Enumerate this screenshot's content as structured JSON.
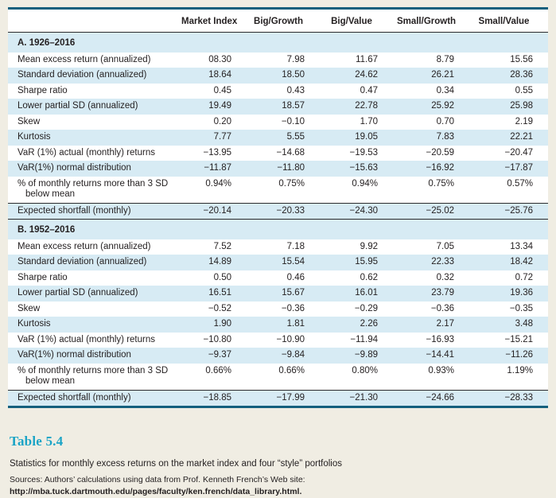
{
  "table": {
    "columns": [
      "Market Index",
      "Big/Growth",
      "Big/Value",
      "Small/Growth",
      "Small/Value"
    ],
    "panels": [
      {
        "title": "A. 1926–2016",
        "rows": [
          {
            "label": "Mean excess return (annualized)",
            "values": [
              "08.30",
              "7.98",
              "11.67",
              "8.79",
              "15.56"
            ]
          },
          {
            "label": "Standard deviation (annualized)",
            "values": [
              "18.64",
              "18.50",
              "24.62",
              "26.21",
              "28.36"
            ]
          },
          {
            "label": "Sharpe ratio",
            "values": [
              "0.45",
              "0.43",
              "0.47",
              "0.34",
              "0.55"
            ]
          },
          {
            "label": "Lower partial SD (annualized)",
            "values": [
              "19.49",
              "18.57",
              "22.78",
              "25.92",
              "25.98"
            ]
          },
          {
            "label": "Skew",
            "values": [
              "0.20",
              "−0.10",
              "1.70",
              "0.70",
              "2.19"
            ]
          },
          {
            "label": "Kurtosis",
            "values": [
              "7.77",
              "5.55",
              "19.05",
              "7.83",
              "22.21"
            ]
          },
          {
            "label": "VaR (1%) actual (monthly) returns",
            "values": [
              "−13.95",
              "−14.68",
              "−19.53",
              "−20.59",
              "−20.47"
            ]
          },
          {
            "label": "VaR(1%) normal distribution",
            "values": [
              "−11.87",
              "−11.80",
              "−15.63",
              "−16.92",
              "−17.87"
            ]
          },
          {
            "label": "% of monthly returns more than 3 SD below mean",
            "values": [
              "0.94%",
              "0.75%",
              "0.94%",
              "0.75%",
              "0.57%"
            ]
          },
          {
            "label": "Expected shortfall (monthly)",
            "values": [
              "−20.14",
              "−20.33",
              "−24.30",
              "−25.02",
              "−25.76"
            ]
          }
        ]
      },
      {
        "title": "B. 1952–2016",
        "rows": [
          {
            "label": "Mean excess return (annualized)",
            "values": [
              "7.52",
              "7.18",
              "9.92",
              "7.05",
              "13.34"
            ]
          },
          {
            "label": "Standard deviation (annualized)",
            "values": [
              "14.89",
              "15.54",
              "15.95",
              "22.33",
              "18.42"
            ]
          },
          {
            "label": "Sharpe ratio",
            "values": [
              "0.50",
              "0.46",
              "0.62",
              "0.32",
              "0.72"
            ]
          },
          {
            "label": "Lower partial SD (annualized)",
            "values": [
              "16.51",
              "15.67",
              "16.01",
              "23.79",
              "19.36"
            ]
          },
          {
            "label": "Skew",
            "values": [
              "−0.52",
              "−0.36",
              "−0.29",
              "−0.36",
              "−0.35"
            ]
          },
          {
            "label": "Kurtosis",
            "values": [
              "1.90",
              "1.81",
              "2.26",
              "2.17",
              "3.48"
            ]
          },
          {
            "label": "VaR (1%) actual (monthly) returns",
            "values": [
              "−10.80",
              "−10.90",
              "−11.94",
              "−16.93",
              "−15.21"
            ]
          },
          {
            "label": "VaR(1%) normal distribution",
            "values": [
              "−9.37",
              "−9.84",
              "−9.89",
              "−14.41",
              "−11.26"
            ]
          },
          {
            "label": "% of monthly returns more than 3 SD below mean",
            "values": [
              "0.66%",
              "0.66%",
              "0.80%",
              "0.93%",
              "1.19%"
            ]
          },
          {
            "label": "Expected shortfall (monthly)",
            "values": [
              "−18.85",
              "−17.99",
              "−21.30",
              "−24.66",
              "−28.33"
            ]
          }
        ]
      }
    ]
  },
  "caption": {
    "table_number": "Table 5.4",
    "title": "Statistics for monthly excess returns on the market index and four “style” portfolios",
    "sources_text": "Sources: Authors’ calculations using data from Prof. Kenneth French’s Web site: ",
    "sources_link": "http://mba.tuck.dartmouth.edu/pages/faculty/ken.french/data_library.html",
    "sources_period": "."
  }
}
